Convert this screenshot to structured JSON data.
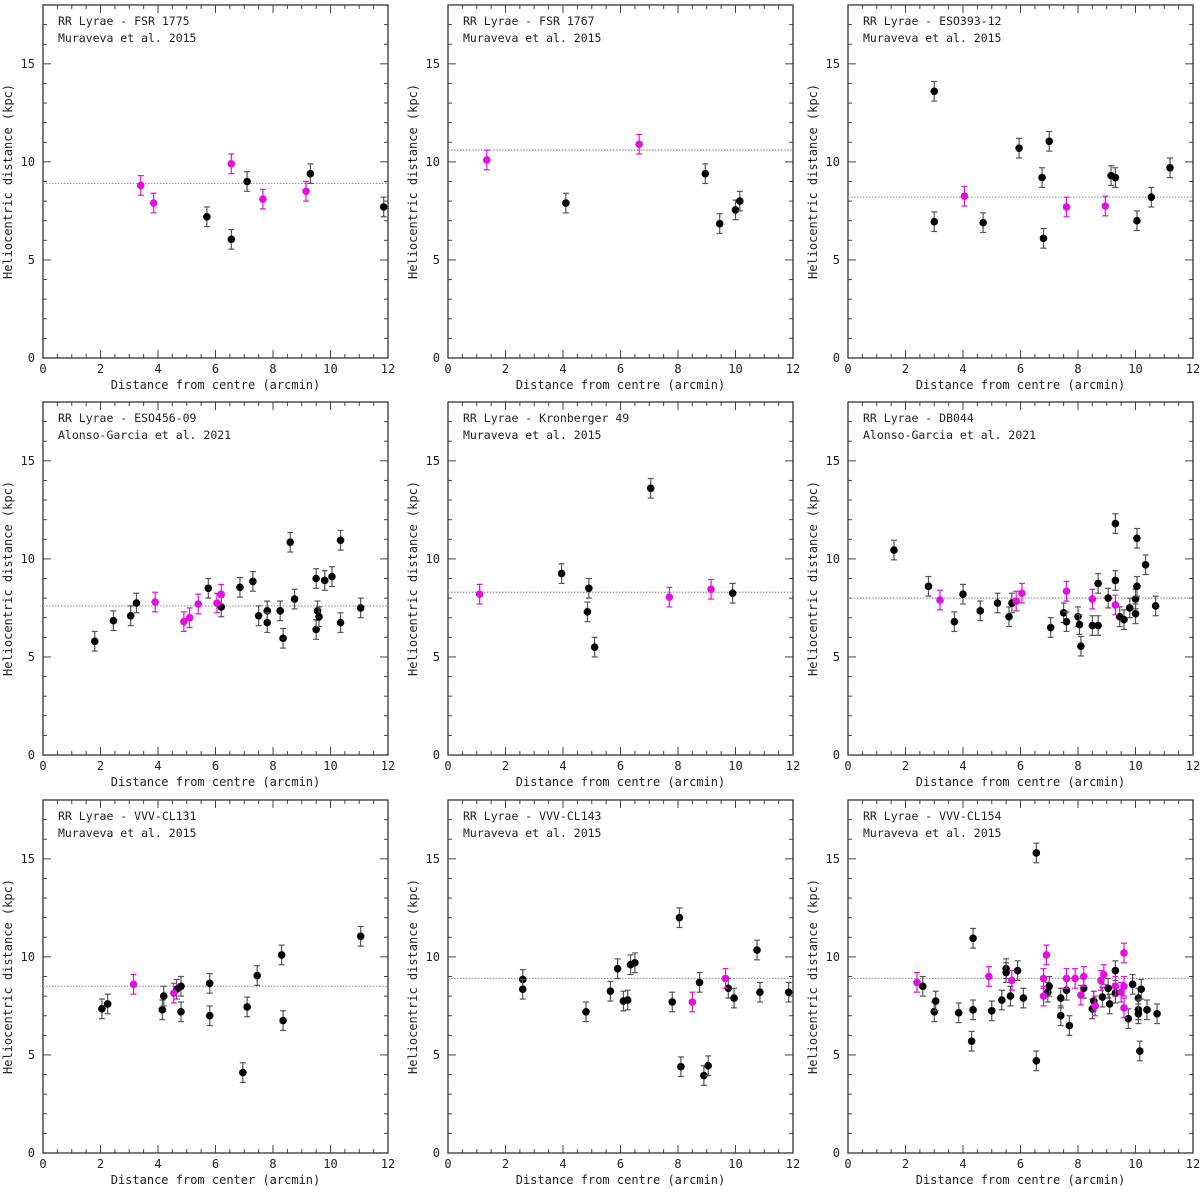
{
  "colors": {
    "black": "#000000",
    "magenta": "#e010e0",
    "frame": "#333333",
    "line": "#999999"
  },
  "chart_data": [
    {
      "type": "scatter",
      "title": "RR Lyrae - FSR 1775",
      "subtitle": "Muraveva et al. 2015",
      "xlabel": "Distance from centre (arcmin)",
      "ylabel": "Heliocentric distance (kpc)",
      "xlim": [
        0,
        12
      ],
      "ylim": [
        0,
        18
      ],
      "xticks": [
        "0",
        "2",
        "4",
        "6",
        "8",
        "10",
        "12"
      ],
      "yticks": [
        "0",
        "5",
        "10",
        "15"
      ],
      "mean_line": 8.9,
      "err": 0.5,
      "points": [
        [
          3.4,
          8.8,
          1
        ],
        [
          3.85,
          7.9,
          1
        ],
        [
          6.55,
          9.9,
          1
        ],
        [
          7.65,
          8.1,
          1
        ],
        [
          9.15,
          8.5,
          1
        ],
        [
          5.7,
          7.2,
          0
        ],
        [
          6.55,
          6.05,
          0
        ],
        [
          7.1,
          9.0,
          0
        ],
        [
          9.3,
          9.4,
          0
        ],
        [
          11.85,
          7.7,
          0
        ]
      ]
    },
    {
      "type": "scatter",
      "title": "RR Lyrae - FSR 1767",
      "subtitle": "Muraveva et al. 2015",
      "xlabel": "Distance from centre (arcmin)",
      "ylabel": "Heliocentric distance (kpc)",
      "xlim": [
        0,
        12
      ],
      "ylim": [
        0,
        18
      ],
      "xticks": [
        "0",
        "2",
        "4",
        "6",
        "8",
        "10",
        "12"
      ],
      "yticks": [
        "0",
        "5",
        "10",
        "15"
      ],
      "mean_line": 10.6,
      "err": 0.5,
      "points": [
        [
          1.35,
          10.1,
          1
        ],
        [
          6.65,
          10.9,
          1
        ],
        [
          4.1,
          7.9,
          0
        ],
        [
          8.95,
          9.4,
          0
        ],
        [
          9.45,
          6.85,
          0
        ],
        [
          10.0,
          7.55,
          0
        ],
        [
          10.15,
          8.0,
          0
        ]
      ]
    },
    {
      "type": "scatter",
      "title": "RR Lyrae - ESO393-12",
      "subtitle": "Muraveva et al. 2015",
      "xlabel": "Distance from centre (arcmin)",
      "ylabel": "Heliocentric distance (kpc)",
      "xlim": [
        0,
        12
      ],
      "ylim": [
        0,
        18
      ],
      "xticks": [
        "0",
        "2",
        "4",
        "6",
        "8",
        "10",
        "12"
      ],
      "yticks": [
        "0",
        "5",
        "10",
        "15"
      ],
      "mean_line": 8.2,
      "err": 0.5,
      "points": [
        [
          3.0,
          13.6,
          0
        ],
        [
          3.0,
          6.95,
          0
        ],
        [
          4.7,
          6.9,
          0
        ],
        [
          5.95,
          10.7,
          0
        ],
        [
          6.75,
          9.2,
          0
        ],
        [
          6.8,
          6.1,
          0
        ],
        [
          7.0,
          11.05,
          0
        ],
        [
          9.15,
          9.3,
          0
        ],
        [
          9.3,
          9.2,
          0
        ],
        [
          10.05,
          7.0,
          0
        ],
        [
          10.55,
          8.2,
          0
        ],
        [
          11.2,
          9.7,
          0
        ],
        [
          4.05,
          8.25,
          1
        ],
        [
          7.6,
          7.7,
          1
        ],
        [
          8.95,
          7.75,
          1
        ]
      ]
    },
    {
      "type": "scatter",
      "title": "RR Lyrae - ESO456-09",
      "subtitle": "Alonso-Garcia et al. 2021",
      "xlabel": "Distance from centre (arcmin)",
      "ylabel": "Heliocentric distance (kpc)",
      "xlim": [
        0,
        12
      ],
      "ylim": [
        0,
        18
      ],
      "xticks": [
        "0",
        "2",
        "4",
        "6",
        "8",
        "10",
        "12"
      ],
      "yticks": [
        "0",
        "5",
        "10",
        "15"
      ],
      "mean_line": 7.6,
      "err": 0.5,
      "points": [
        [
          1.8,
          5.8,
          0
        ],
        [
          2.45,
          6.85,
          0
        ],
        [
          3.05,
          7.1,
          0
        ],
        [
          3.25,
          7.75,
          0
        ],
        [
          5.75,
          8.5,
          0
        ],
        [
          6.2,
          7.55,
          0
        ],
        [
          6.85,
          8.55,
          0
        ],
        [
          7.3,
          8.85,
          0
        ],
        [
          7.5,
          7.1,
          0
        ],
        [
          7.8,
          7.35,
          0
        ],
        [
          7.8,
          6.75,
          0
        ],
        [
          8.25,
          7.35,
          0
        ],
        [
          8.35,
          5.95,
          0
        ],
        [
          8.6,
          10.85,
          0
        ],
        [
          8.75,
          7.95,
          0
        ],
        [
          9.5,
          9.0,
          0
        ],
        [
          9.5,
          6.4,
          0
        ],
        [
          9.55,
          7.35,
          0
        ],
        [
          9.6,
          7.05,
          0
        ],
        [
          9.8,
          8.9,
          0
        ],
        [
          10.05,
          9.1,
          0
        ],
        [
          10.35,
          10.95,
          0
        ],
        [
          10.35,
          6.75,
          0
        ],
        [
          11.05,
          7.5,
          0
        ],
        [
          3.9,
          7.8,
          1
        ],
        [
          4.9,
          6.8,
          1
        ],
        [
          5.1,
          7.0,
          1
        ],
        [
          5.4,
          7.7,
          1
        ],
        [
          6.05,
          7.75,
          1
        ],
        [
          6.2,
          8.2,
          1
        ]
      ]
    },
    {
      "type": "scatter",
      "title": "RR Lyrae - Kronberger 49",
      "subtitle": "Muraveva et al. 2015",
      "xlabel": "Distance from centre (arcmin)",
      "ylabel": "Heliocentric distance (kpc)",
      "xlim": [
        0,
        12
      ],
      "ylim": [
        0,
        18
      ],
      "xticks": [
        "0",
        "2",
        "4",
        "6",
        "8",
        "10",
        "12"
      ],
      "yticks": [
        "0",
        "5",
        "10",
        "15"
      ],
      "mean_line": 8.3,
      "err": 0.5,
      "points": [
        [
          1.1,
          8.2,
          1
        ],
        [
          7.7,
          8.05,
          1
        ],
        [
          9.15,
          8.45,
          1
        ],
        [
          3.95,
          9.25,
          0
        ],
        [
          4.85,
          7.3,
          0
        ],
        [
          4.9,
          8.5,
          0
        ],
        [
          5.1,
          5.5,
          0
        ],
        [
          7.05,
          13.6,
          0
        ],
        [
          9.9,
          8.25,
          0
        ]
      ]
    },
    {
      "type": "scatter",
      "title": "RR Lyrae - DB044",
      "subtitle": "Alonso-Garcia et al. 2021",
      "xlabel": "Distance from centre (arcmin)",
      "ylabel": "Heliocentric distance (kpc)",
      "xlim": [
        0,
        12
      ],
      "ylim": [
        0,
        18
      ],
      "xticks": [
        "0",
        "2",
        "4",
        "6",
        "8",
        "10",
        "12"
      ],
      "yticks": [
        "0",
        "5",
        "10",
        "15"
      ],
      "mean_line": 8.0,
      "err": 0.5,
      "points": [
        [
          1.6,
          10.45,
          0
        ],
        [
          2.8,
          8.6,
          0
        ],
        [
          3.7,
          6.8,
          0
        ],
        [
          4.0,
          8.2,
          0
        ],
        [
          4.6,
          7.35,
          0
        ],
        [
          5.2,
          7.75,
          0
        ],
        [
          5.6,
          7.05,
          0
        ],
        [
          5.7,
          7.75,
          0
        ],
        [
          7.05,
          6.5,
          0
        ],
        [
          7.5,
          7.25,
          0
        ],
        [
          7.6,
          6.8,
          0
        ],
        [
          8.0,
          7.05,
          0
        ],
        [
          8.05,
          6.65,
          0
        ],
        [
          8.1,
          5.55,
          0
        ],
        [
          8.5,
          6.6,
          0
        ],
        [
          8.7,
          8.75,
          0
        ],
        [
          8.7,
          6.6,
          0
        ],
        [
          9.05,
          8.0,
          0
        ],
        [
          9.3,
          11.8,
          0
        ],
        [
          9.3,
          8.9,
          0
        ],
        [
          9.45,
          7.05,
          0
        ],
        [
          9.6,
          6.9,
          0
        ],
        [
          9.8,
          7.5,
          0
        ],
        [
          10.0,
          7.95,
          0
        ],
        [
          10.0,
          7.2,
          0
        ],
        [
          10.05,
          8.6,
          0
        ],
        [
          10.05,
          11.05,
          0
        ],
        [
          10.35,
          9.7,
          0
        ],
        [
          10.7,
          7.6,
          0
        ],
        [
          3.2,
          7.9,
          1
        ],
        [
          5.85,
          7.85,
          1
        ],
        [
          6.05,
          8.25,
          1
        ],
        [
          7.6,
          8.35,
          1
        ],
        [
          8.5,
          7.95,
          1
        ],
        [
          9.3,
          7.65,
          1
        ]
      ]
    },
    {
      "type": "scatter",
      "title": "RR Lyrae - VVV-CL131",
      "subtitle": "Muraveva et al. 2015",
      "xlabel": "Distance from center (arcmin)",
      "ylabel": "Heliocentric distance (kpc)",
      "xlim": [
        0,
        12
      ],
      "ylim": [
        0,
        18
      ],
      "xticks": [
        "0",
        "2",
        "4",
        "6",
        "8",
        "10",
        "12"
      ],
      "yticks": [
        "0",
        "5",
        "10",
        "15"
      ],
      "mean_line": 8.5,
      "err": 0.5,
      "points": [
        [
          2.05,
          7.35,
          0
        ],
        [
          2.25,
          7.6,
          0
        ],
        [
          4.15,
          7.3,
          0
        ],
        [
          4.2,
          8.0,
          0
        ],
        [
          4.65,
          8.35,
          0
        ],
        [
          4.8,
          8.5,
          0
        ],
        [
          4.8,
          7.2,
          0
        ],
        [
          5.8,
          8.65,
          0
        ],
        [
          5.8,
          7.0,
          0
        ],
        [
          6.95,
          4.1,
          0
        ],
        [
          7.1,
          7.45,
          0
        ],
        [
          7.45,
          9.05,
          0
        ],
        [
          8.3,
          10.1,
          0
        ],
        [
          8.35,
          6.75,
          0
        ],
        [
          11.05,
          11.05,
          0
        ],
        [
          3.15,
          8.6,
          1
        ],
        [
          4.55,
          8.15,
          1
        ]
      ]
    },
    {
      "type": "scatter",
      "title": "RR Lyrae - VVV-CL143",
      "subtitle": "Muraveva et al. 2015",
      "xlabel": "Distance from centre (arcmin)",
      "ylabel": "Heliocentric distance (kpc)",
      "xlim": [
        0,
        12
      ],
      "ylim": [
        0,
        18
      ],
      "xticks": [
        "0",
        "2",
        "4",
        "6",
        "8",
        "10",
        "12"
      ],
      "yticks": [
        "0",
        "5",
        "10",
        "15"
      ],
      "mean_line": 8.9,
      "err": 0.5,
      "points": [
        [
          2.6,
          8.85,
          0
        ],
        [
          2.6,
          8.35,
          0
        ],
        [
          4.8,
          7.2,
          0
        ],
        [
          5.65,
          8.25,
          0
        ],
        [
          5.9,
          9.4,
          0
        ],
        [
          6.1,
          7.75,
          0
        ],
        [
          6.25,
          7.8,
          0
        ],
        [
          6.35,
          9.6,
          0
        ],
        [
          6.5,
          9.7,
          0
        ],
        [
          7.8,
          7.7,
          0
        ],
        [
          8.05,
          12.0,
          0
        ],
        [
          8.1,
          4.4,
          0
        ],
        [
          8.75,
          8.7,
          0
        ],
        [
          8.9,
          3.95,
          0
        ],
        [
          9.05,
          4.45,
          0
        ],
        [
          9.75,
          8.4,
          0
        ],
        [
          9.95,
          7.9,
          0
        ],
        [
          10.75,
          10.35,
          0
        ],
        [
          10.85,
          8.2,
          0
        ],
        [
          11.85,
          8.2,
          0
        ],
        [
          8.5,
          7.7,
          1
        ],
        [
          9.65,
          8.9,
          1
        ]
      ]
    },
    {
      "type": "scatter",
      "title": "RR Lyrae - VVV-CL154",
      "subtitle": "Muraveva et al. 2015",
      "xlabel": "Distance from centre (arcmin)",
      "ylabel": "Heliocentric distance (kpc)",
      "xlim": [
        0,
        12
      ],
      "ylim": [
        0,
        18
      ],
      "xticks": [
        "0",
        "2",
        "4",
        "6",
        "8",
        "10",
        "12"
      ],
      "yticks": [
        "0",
        "5",
        "10",
        "15"
      ],
      "mean_line": 8.9,
      "err": 0.5,
      "points": [
        [
          2.6,
          8.5,
          0
        ],
        [
          3.0,
          7.2,
          0
        ],
        [
          3.05,
          7.75,
          0
        ],
        [
          3.85,
          7.15,
          0
        ],
        [
          4.3,
          5.7,
          0
        ],
        [
          4.35,
          10.95,
          0
        ],
        [
          4.35,
          7.3,
          0
        ],
        [
          5.0,
          7.25,
          0
        ],
        [
          5.35,
          7.8,
          0
        ],
        [
          5.5,
          9.4,
          0
        ],
        [
          5.5,
          9.2,
          0
        ],
        [
          5.65,
          8.0,
          0
        ],
        [
          5.9,
          9.3,
          0
        ],
        [
          6.1,
          7.9,
          0
        ],
        [
          6.55,
          15.3,
          0
        ],
        [
          6.55,
          4.7,
          0
        ],
        [
          6.95,
          8.2,
          0
        ],
        [
          7.0,
          8.5,
          0
        ],
        [
          7.4,
          7.9,
          0
        ],
        [
          7.4,
          7.0,
          0
        ],
        [
          7.6,
          8.3,
          0
        ],
        [
          7.7,
          6.5,
          0
        ],
        [
          8.2,
          8.4,
          0
        ],
        [
          8.5,
          7.35,
          0
        ],
        [
          8.55,
          7.75,
          0
        ],
        [
          8.85,
          7.95,
          0
        ],
        [
          9.05,
          8.4,
          0
        ],
        [
          9.1,
          7.6,
          0
        ],
        [
          9.3,
          8.15,
          0
        ],
        [
          9.3,
          9.3,
          0
        ],
        [
          9.75,
          6.85,
          0
        ],
        [
          9.9,
          8.6,
          0
        ],
        [
          10.1,
          7.9,
          0
        ],
        [
          10.1,
          7.3,
          0
        ],
        [
          10.1,
          7.1,
          0
        ],
        [
          10.15,
          5.2,
          0
        ],
        [
          10.2,
          8.35,
          0
        ],
        [
          10.4,
          7.3,
          0
        ],
        [
          10.75,
          7.1,
          0
        ],
        [
          2.4,
          8.7,
          1
        ],
        [
          4.9,
          9.0,
          1
        ],
        [
          5.7,
          8.8,
          1
        ],
        [
          6.8,
          8.9,
          1
        ],
        [
          6.8,
          8.0,
          1
        ],
        [
          6.9,
          10.1,
          1
        ],
        [
          7.6,
          8.9,
          1
        ],
        [
          7.9,
          8.9,
          1
        ],
        [
          8.1,
          8.05,
          1
        ],
        [
          8.2,
          9.0,
          1
        ],
        [
          8.6,
          7.5,
          1
        ],
        [
          8.8,
          8.8,
          1
        ],
        [
          8.9,
          9.1,
          1
        ],
        [
          9.3,
          8.5,
          1
        ],
        [
          9.5,
          8.2,
          1
        ],
        [
          9.6,
          8.5,
          1
        ],
        [
          9.6,
          7.4,
          1
        ],
        [
          9.6,
          10.2,
          1
        ]
      ]
    }
  ]
}
